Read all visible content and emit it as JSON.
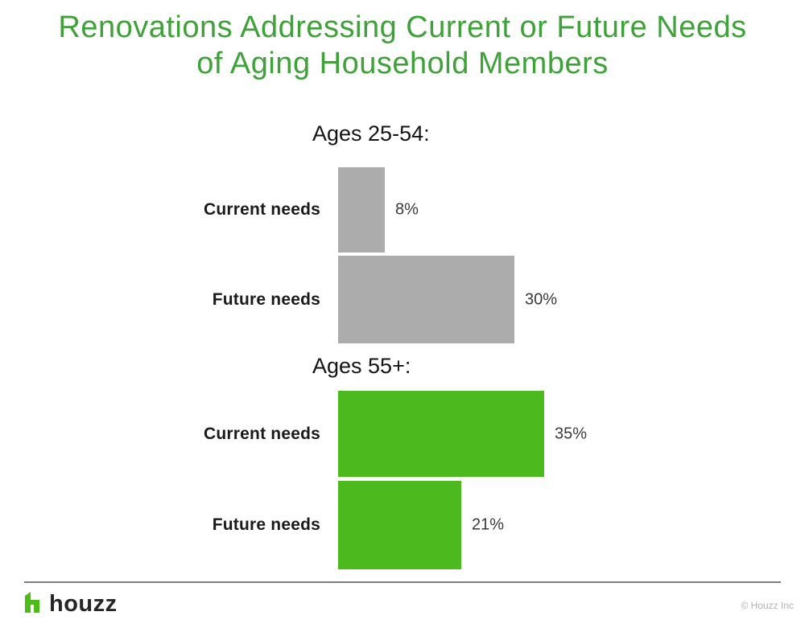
{
  "title": {
    "line1": "Renovations Addressing Current or Future Needs",
    "line2": "of Aging Household Members"
  },
  "chart_data": [
    {
      "type": "bar",
      "orientation": "horizontal",
      "title": "Ages 25-54:",
      "categories": [
        "Current needs",
        "Future needs"
      ],
      "values": [
        8,
        30
      ],
      "value_labels": [
        "8%",
        "30%"
      ],
      "bar_color": "#ACACAC",
      "xlim": [
        0,
        40
      ],
      "grid": false,
      "legend": "none"
    },
    {
      "type": "bar",
      "orientation": "horizontal",
      "title": "Ages 55+:",
      "categories": [
        "Current needs",
        "Future needs"
      ],
      "values": [
        35,
        21
      ],
      "value_labels": [
        "35%",
        "21%"
      ],
      "bar_color": "#4CBA1E",
      "xlim": [
        0,
        40
      ],
      "grid": false,
      "legend": "none"
    }
  ],
  "footer": {
    "brand": "houzz",
    "logo_icon": "houzz-h-icon",
    "copyright": "© Houzz Inc"
  },
  "colors": {
    "title_green": "#3EA239",
    "bar_green": "#4CBA1E",
    "bar_gray": "#ACACAC",
    "logo_green": "#4DBC15",
    "text_dark": "#1A1A1A"
  }
}
